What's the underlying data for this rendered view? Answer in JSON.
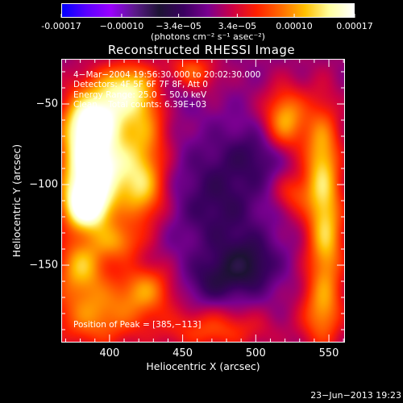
{
  "colorbar": {
    "ticks": [
      "-0.00017",
      "−0.00010",
      "−3.4e−05",
      "3.4e−05",
      "0.00010",
      "0.00017"
    ],
    "unit": "(photons cm⁻² s⁻¹ asec⁻²)",
    "colors": [
      "#0000ff",
      "#5a00ff",
      "#9a00ff",
      "#5b1a8a",
      "#1c1333",
      "#3a0060",
      "#7a0090",
      "#cc0044",
      "#ff2000",
      "#ff6a00",
      "#ffc000",
      "#ffffa0",
      "#ffffff"
    ]
  },
  "annotations": {
    "line1": "4−Mar−2004 19:56:30.000 to 20:02:30.000",
    "line2": "Detectors: 4F 5F 6F 7F 8F, Att 0",
    "line3": "Energy Range: 25.0 − 50.0 keV",
    "line4": "Clean    Total counts: 6.39E+03",
    "peak": "Position of Peak = [385,−113]"
  },
  "footer": {
    "timestamp": "23−Jun−2013 19:23"
  },
  "chart_data": {
    "type": "heatmap",
    "title": "Reconstructed RHESSI Image",
    "xlabel": "Heliocentric X (arcsec)",
    "ylabel": "Heliocentric Y (arcsec)",
    "xlim": [
      367,
      561
    ],
    "ylim": [
      -198,
      -22
    ],
    "xticks": [
      400,
      450,
      500,
      550
    ],
    "yticks": [
      -50,
      -100,
      -150
    ],
    "xtick_labels": [
      "400",
      "450",
      "500",
      "550"
    ],
    "ytick_labels": [
      "−50",
      "−100",
      "−150"
    ],
    "peak": [
      385,
      -113
    ],
    "color_range": [
      -0.00017,
      0.00017
    ],
    "sources": [
      {
        "x": 385,
        "y": -113,
        "sx": 12,
        "sy": 11,
        "amp": 1.0
      },
      {
        "x": 395,
        "y": -88,
        "sx": 14,
        "sy": 14,
        "amp": 0.85
      },
      {
        "x": 392,
        "y": -60,
        "sx": 14,
        "sy": 12,
        "amp": 0.82
      },
      {
        "x": 410,
        "y": -40,
        "sx": 16,
        "sy": 11,
        "amp": 0.65
      },
      {
        "x": 378,
        "y": -80,
        "sx": 10,
        "sy": 24,
        "amp": 0.5
      },
      {
        "x": 424,
        "y": -66,
        "sx": 11,
        "sy": 20,
        "amp": 0.45
      },
      {
        "x": 422,
        "y": -104,
        "sx": 11,
        "sy": 15,
        "amp": 0.55
      },
      {
        "x": 405,
        "y": -135,
        "sx": 12,
        "sy": 9,
        "amp": 0.45
      },
      {
        "x": 380,
        "y": -150,
        "sx": 12,
        "sy": 12,
        "amp": 0.55
      },
      {
        "x": 390,
        "y": -180,
        "sx": 22,
        "sy": 15,
        "amp": 0.5
      },
      {
        "x": 425,
        "y": -165,
        "sx": 13,
        "sy": 11,
        "amp": 0.45
      },
      {
        "x": 470,
        "y": -190,
        "sx": 26,
        "sy": 9,
        "amp": 0.35
      },
      {
        "x": 455,
        "y": -30,
        "sx": 12,
        "sy": 8,
        "amp": 0.42
      },
      {
        "x": 520,
        "y": -60,
        "sx": 10,
        "sy": 14,
        "amp": 0.6
      },
      {
        "x": 545,
        "y": -85,
        "sx": 9,
        "sy": 26,
        "amp": 0.6
      },
      {
        "x": 548,
        "y": -135,
        "sx": 9,
        "sy": 24,
        "amp": 0.55
      },
      {
        "x": 545,
        "y": -180,
        "sx": 10,
        "sy": 16,
        "amp": 0.45
      },
      {
        "x": 525,
        "y": -105,
        "sx": 9,
        "sy": 9,
        "amp": 0.3
      },
      {
        "x": 440,
        "y": -40,
        "sx": 10,
        "sy": 10,
        "amp": -0.2
      },
      {
        "x": 475,
        "y": -110,
        "sx": 22,
        "sy": 28,
        "amp": -0.25
      },
      {
        "x": 495,
        "y": -150,
        "sx": 14,
        "sy": 12,
        "amp": -0.3
      },
      {
        "x": 505,
        "y": -80,
        "sx": 16,
        "sy": 12,
        "amp": -0.18
      },
      {
        "x": 470,
        "y": -160,
        "sx": 14,
        "sy": 10,
        "amp": -0.2
      }
    ]
  }
}
